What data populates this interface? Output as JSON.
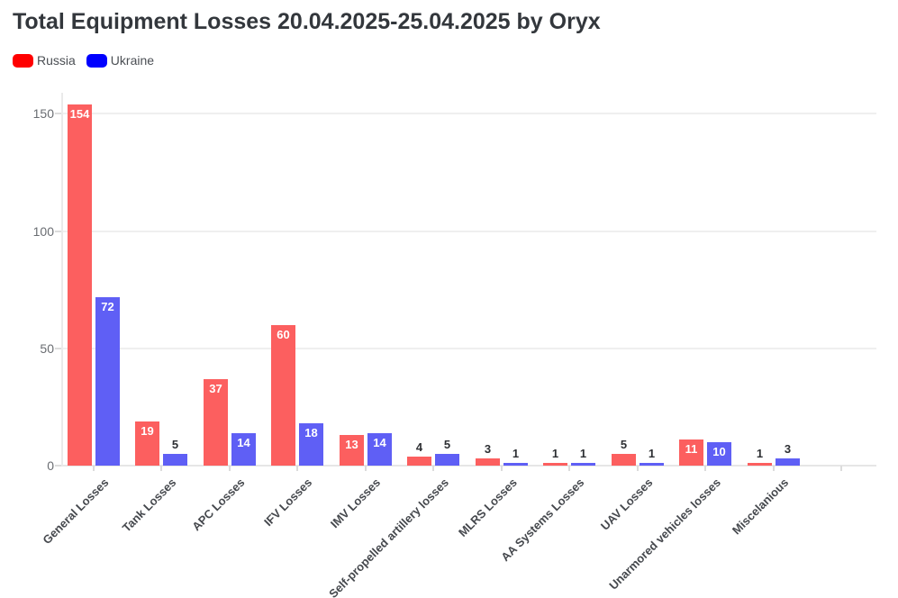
{
  "title": "Total Equipment Losses 20.04.2025-25.04.2025 by Oryx",
  "legend": {
    "items": [
      {
        "label": "Russia",
        "color": "#ff0000"
      },
      {
        "label": "Ukraine",
        "color": "#0000ff"
      }
    ]
  },
  "colors": {
    "russia_bar": "#fc5f5f",
    "ukraine_bar": "#5f5ff5",
    "value_label_inside": "#ffffff",
    "value_label_outside": "#2d2f33"
  },
  "chart_data": {
    "type": "bar",
    "title": "Total Equipment Losses 20.04.2025-25.04.2025 by Oryx",
    "categories": [
      "General Losses",
      "Tank Losses",
      "APC Losses",
      "IFV Losses",
      "IMV Losses",
      "Self-propelled artillery losses",
      "MLRS Losses",
      "AA Systems Losses",
      "UAV Losses",
      "Unarmored vehicles losses",
      "Miscelanious"
    ],
    "series": [
      {
        "name": "Russia",
        "values": [
          154,
          19,
          37,
          60,
          13,
          4,
          3,
          1,
          5,
          11,
          1
        ]
      },
      {
        "name": "Ukraine",
        "values": [
          72,
          5,
          14,
          18,
          14,
          5,
          1,
          1,
          1,
          10,
          3
        ]
      }
    ],
    "xlabel": "",
    "ylabel": "",
    "ylim": [
      0,
      159
    ],
    "yticks": [
      0,
      50,
      100,
      150
    ],
    "grid": true,
    "legend_position": "top-left",
    "value_labels": true,
    "value_label_inside_threshold": 10
  }
}
